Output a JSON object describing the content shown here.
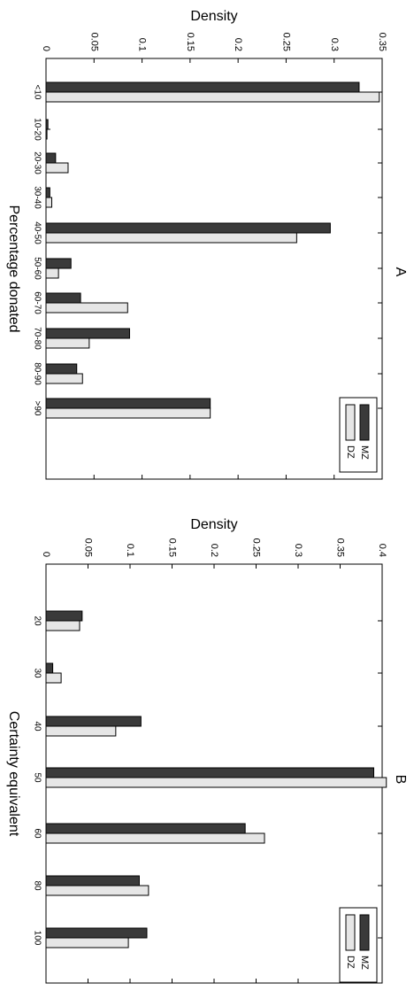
{
  "chart_data": [
    {
      "type": "bar",
      "panel_label": "A",
      "xlabel": "Percentage donated",
      "ylabel": "Density",
      "ylim": [
        0,
        0.35
      ],
      "yticks": [
        "0",
        "0.05",
        "0.1",
        "0.15",
        "0.2",
        "0.25",
        "0.3",
        "0.35"
      ],
      "categories": [
        "<10",
        "10-20",
        "20-30",
        "30-40",
        "40-50",
        "50-60",
        "60-70",
        "70-80",
        "80-90",
        ">90"
      ],
      "series": [
        {
          "name": "MZ",
          "color": "#3a3a3a",
          "values": [
            0.326,
            0.002,
            0.01,
            0.004,
            0.296,
            0.026,
            0.036,
            0.087,
            0.032,
            0.171
          ]
        },
        {
          "name": "DZ",
          "color": "#e6e6e6",
          "values": [
            0.347,
            0.001,
            0.023,
            0.006,
            0.261,
            0.013,
            0.085,
            0.045,
            0.038,
            0.171
          ]
        }
      ],
      "legend_position": "bottom-right",
      "grid": false
    },
    {
      "type": "bar",
      "panel_label": "B",
      "xlabel": "Certainty equivalent",
      "ylabel": "Density",
      "ylim": [
        0,
        0.4
      ],
      "yticks": [
        "0",
        "0.05",
        "0.1",
        "0.15",
        "0.2",
        "0.25",
        "0.3",
        "0.35",
        "0.4"
      ],
      "categories": [
        "20",
        "30",
        "40",
        "50",
        "60",
        "80",
        "100"
      ],
      "series": [
        {
          "name": "MZ",
          "color": "#3a3a3a",
          "values": [
            0.043,
            0.008,
            0.113,
            0.39,
            0.237,
            0.111,
            0.12
          ]
        },
        {
          "name": "DZ",
          "color": "#e6e6e6",
          "values": [
            0.04,
            0.018,
            0.083,
            0.405,
            0.26,
            0.122,
            0.098
          ]
        }
      ],
      "legend_position": "bottom-right",
      "grid": false
    }
  ]
}
